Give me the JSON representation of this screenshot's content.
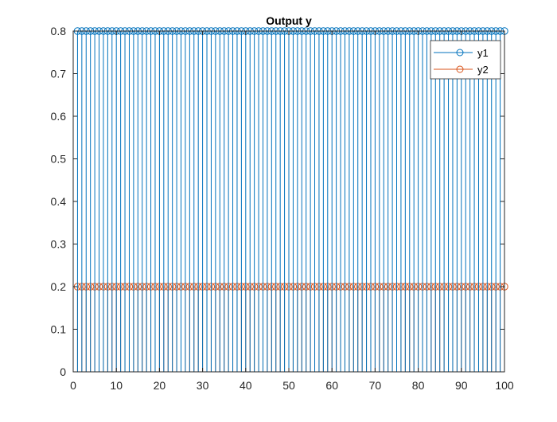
{
  "chart_data": {
    "type": "stem",
    "title": "Output y",
    "xlabel": "",
    "ylabel": "",
    "xlim": [
      0,
      100
    ],
    "ylim": [
      0,
      0.8
    ],
    "xticks": [
      "0",
      "10",
      "20",
      "30",
      "40",
      "50",
      "60",
      "70",
      "80",
      "90",
      "100"
    ],
    "yticks": [
      "0",
      "0.1",
      "0.2",
      "0.3",
      "0.4",
      "0.5",
      "0.6",
      "0.7",
      "0.8"
    ],
    "x_start": 1,
    "x_end": 100,
    "x_step": 1,
    "series": [
      {
        "name": "y1",
        "value": 0.8,
        "color": "#0072BD"
      },
      {
        "name": "y2",
        "value": 0.2,
        "color": "#D95319"
      }
    ],
    "legend": {
      "position": "top-right",
      "entries": [
        "y1",
        "y2"
      ]
    },
    "grid": false
  }
}
